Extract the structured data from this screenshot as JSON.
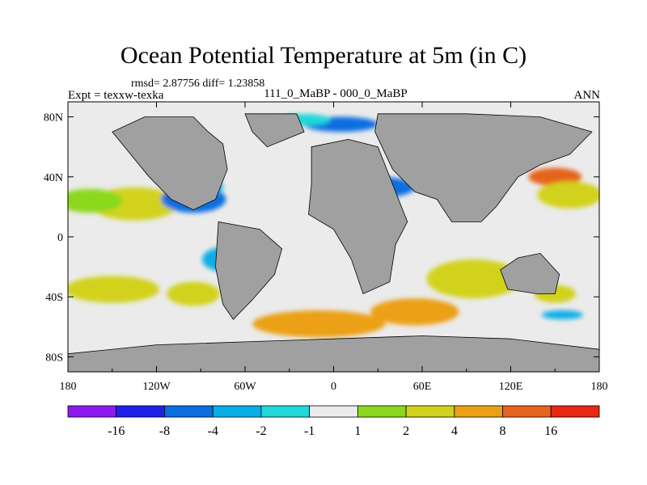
{
  "title": "Ocean Potential Temperature at 5m (in C)",
  "stats": "rmsd= 2.87756 diff= 1.23858",
  "experiment": "Expt = texxw-texka",
  "case": "111_0_MaBP - 000_0_MaBP",
  "season": "ANN",
  "map": {
    "projection": "cylindrical-equidistant",
    "lon_range": [
      -180,
      180
    ],
    "lat_range": [
      -90,
      90
    ],
    "x_ticks": [
      {
        "lon": -180,
        "label": "180"
      },
      {
        "lon": -120,
        "label": "120W"
      },
      {
        "lon": -60,
        "label": "60W"
      },
      {
        "lon": 0,
        "label": "0"
      },
      {
        "lon": 60,
        "label": "60E"
      },
      {
        "lon": 120,
        "label": "120E"
      },
      {
        "lon": 180,
        "label": "180"
      }
    ],
    "y_ticks": [
      {
        "lat": 80,
        "label": "80N"
      },
      {
        "lat": 40,
        "label": "40N"
      },
      {
        "lat": 0,
        "label": "0"
      },
      {
        "lat": -40,
        "label": "40S"
      },
      {
        "lat": -80,
        "label": "80S"
      }
    ],
    "land_color": "#a0a0a0",
    "ocean_base_color": "#ebebeb"
  },
  "colorbar": {
    "colors": [
      "#8c1aee",
      "#1e22e6",
      "#0a6ee0",
      "#0aaee6",
      "#22d8d8",
      "#ebebeb",
      "#8cd81e",
      "#d2d21e",
      "#eba014",
      "#e6641e",
      "#e62814"
    ],
    "labels": [
      "-16",
      "-8",
      "-4",
      "-2",
      "-1",
      "1",
      "2",
      "4",
      "8",
      "16"
    ]
  },
  "fields": [
    {
      "level": 7,
      "name": "warm-subtropical-north-pacific",
      "lon": -135,
      "lat": 22,
      "rx": 30,
      "ry": 11
    },
    {
      "level": 6,
      "name": "mild-north-pacific-band",
      "lon": -165,
      "lat": 24,
      "rx": 22,
      "ry": 8
    },
    {
      "level": 7,
      "name": "warm-south-pacific",
      "lon": -150,
      "lat": -35,
      "rx": 32,
      "ry": 9
    },
    {
      "level": 7,
      "name": "warm-southeast-pacific",
      "lon": -95,
      "lat": -38,
      "rx": 18,
      "ry": 8
    },
    {
      "level": 8,
      "name": "warm-southern-ocean-atlantic",
      "lon": -10,
      "lat": -58,
      "rx": 45,
      "ry": 9
    },
    {
      "level": 8,
      "name": "warm-southern-ocean-indian",
      "lon": 55,
      "lat": -50,
      "rx": 30,
      "ry": 9
    },
    {
      "level": 7,
      "name": "warm-south-indian",
      "lon": 95,
      "lat": -28,
      "rx": 32,
      "ry": 13
    },
    {
      "level": 9,
      "name": "hot-northwest-pacific",
      "lon": 150,
      "lat": 40,
      "rx": 18,
      "ry": 6
    },
    {
      "level": 7,
      "name": "warm-north-pacific-west",
      "lon": 160,
      "lat": 28,
      "rx": 22,
      "ry": 9
    },
    {
      "level": 7,
      "name": "warm-tasman",
      "lon": 150,
      "lat": -38,
      "rx": 14,
      "ry": 6
    },
    {
      "level": 2,
      "name": "cold-north-atlantic-gyre",
      "lon": -95,
      "lat": 25,
      "rx": 22,
      "ry": 9
    },
    {
      "level": 3,
      "name": "cold-west-atlantic-core",
      "lon": -85,
      "lat": 33,
      "rx": 10,
      "ry": 6
    },
    {
      "level": 3,
      "name": "cold-tropical-atlantic",
      "lon": -75,
      "lat": -15,
      "rx": 14,
      "ry": 8
    },
    {
      "level": 2,
      "name": "cold-mediterranean",
      "lon": 30,
      "lat": 33,
      "rx": 25,
      "ry": 7
    },
    {
      "level": 2,
      "name": "cold-arctic-margin",
      "lon": 5,
      "lat": 75,
      "rx": 25,
      "ry": 5
    },
    {
      "level": 4,
      "name": "cool-arctic-ridge",
      "lon": -20,
      "lat": 78,
      "rx": 18,
      "ry": 4
    },
    {
      "level": 3,
      "name": "cold-barents",
      "lon": 50,
      "lat": 68,
      "rx": 18,
      "ry": 5
    },
    {
      "level": 3,
      "name": "cold-southeast-indian",
      "lon": 155,
      "lat": -52,
      "rx": 14,
      "ry": 3
    }
  ],
  "land": [
    {
      "name": "north-america-land",
      "points": [
        [
          -128,
          80
        ],
        [
          -95,
          80
        ],
        [
          -85,
          70
        ],
        [
          -75,
          62
        ],
        [
          -72,
          45
        ],
        [
          -80,
          25
        ],
        [
          -95,
          18
        ],
        [
          -110,
          25
        ],
        [
          -125,
          40
        ],
        [
          -140,
          58
        ],
        [
          -150,
          70
        ]
      ]
    },
    {
      "name": "south-america-land",
      "points": [
        [
          -78,
          10
        ],
        [
          -50,
          5
        ],
        [
          -35,
          -8
        ],
        [
          -40,
          -25
        ],
        [
          -55,
          -42
        ],
        [
          -68,
          -55
        ],
        [
          -75,
          -45
        ],
        [
          -80,
          -20
        ]
      ]
    },
    {
      "name": "africa-europe-land",
      "points": [
        [
          -15,
          60
        ],
        [
          10,
          65
        ],
        [
          30,
          60
        ],
        [
          40,
          35
        ],
        [
          50,
          10
        ],
        [
          42,
          -5
        ],
        [
          38,
          -30
        ],
        [
          20,
          -38
        ],
        [
          12,
          -15
        ],
        [
          0,
          5
        ],
        [
          -17,
          15
        ],
        [
          -15,
          35
        ]
      ]
    },
    {
      "name": "asia-land",
      "points": [
        [
          30,
          82
        ],
        [
          90,
          82
        ],
        [
          140,
          80
        ],
        [
          175,
          70
        ],
        [
          160,
          55
        ],
        [
          140,
          48
        ],
        [
          125,
          40
        ],
        [
          110,
          20
        ],
        [
          100,
          10
        ],
        [
          80,
          10
        ],
        [
          70,
          25
        ],
        [
          55,
          30
        ],
        [
          40,
          45
        ],
        [
          28,
          70
        ]
      ]
    },
    {
      "name": "australia-land",
      "points": [
        [
          113,
          -22
        ],
        [
          125,
          -14
        ],
        [
          140,
          -11
        ],
        [
          153,
          -25
        ],
        [
          150,
          -38
        ],
        [
          138,
          -38
        ],
        [
          118,
          -35
        ]
      ]
    },
    {
      "name": "antarctica-land",
      "points": [
        [
          -180,
          -90
        ],
        [
          180,
          -90
        ],
        [
          180,
          -75
        ],
        [
          120,
          -68
        ],
        [
          60,
          -66
        ],
        [
          0,
          -68
        ],
        [
          -60,
          -70
        ],
        [
          -120,
          -72
        ],
        [
          -180,
          -78
        ]
      ]
    },
    {
      "name": "greenland-land",
      "points": [
        [
          -60,
          82
        ],
        [
          -25,
          82
        ],
        [
          -20,
          70
        ],
        [
          -45,
          60
        ],
        [
          -55,
          70
        ]
      ]
    }
  ]
}
